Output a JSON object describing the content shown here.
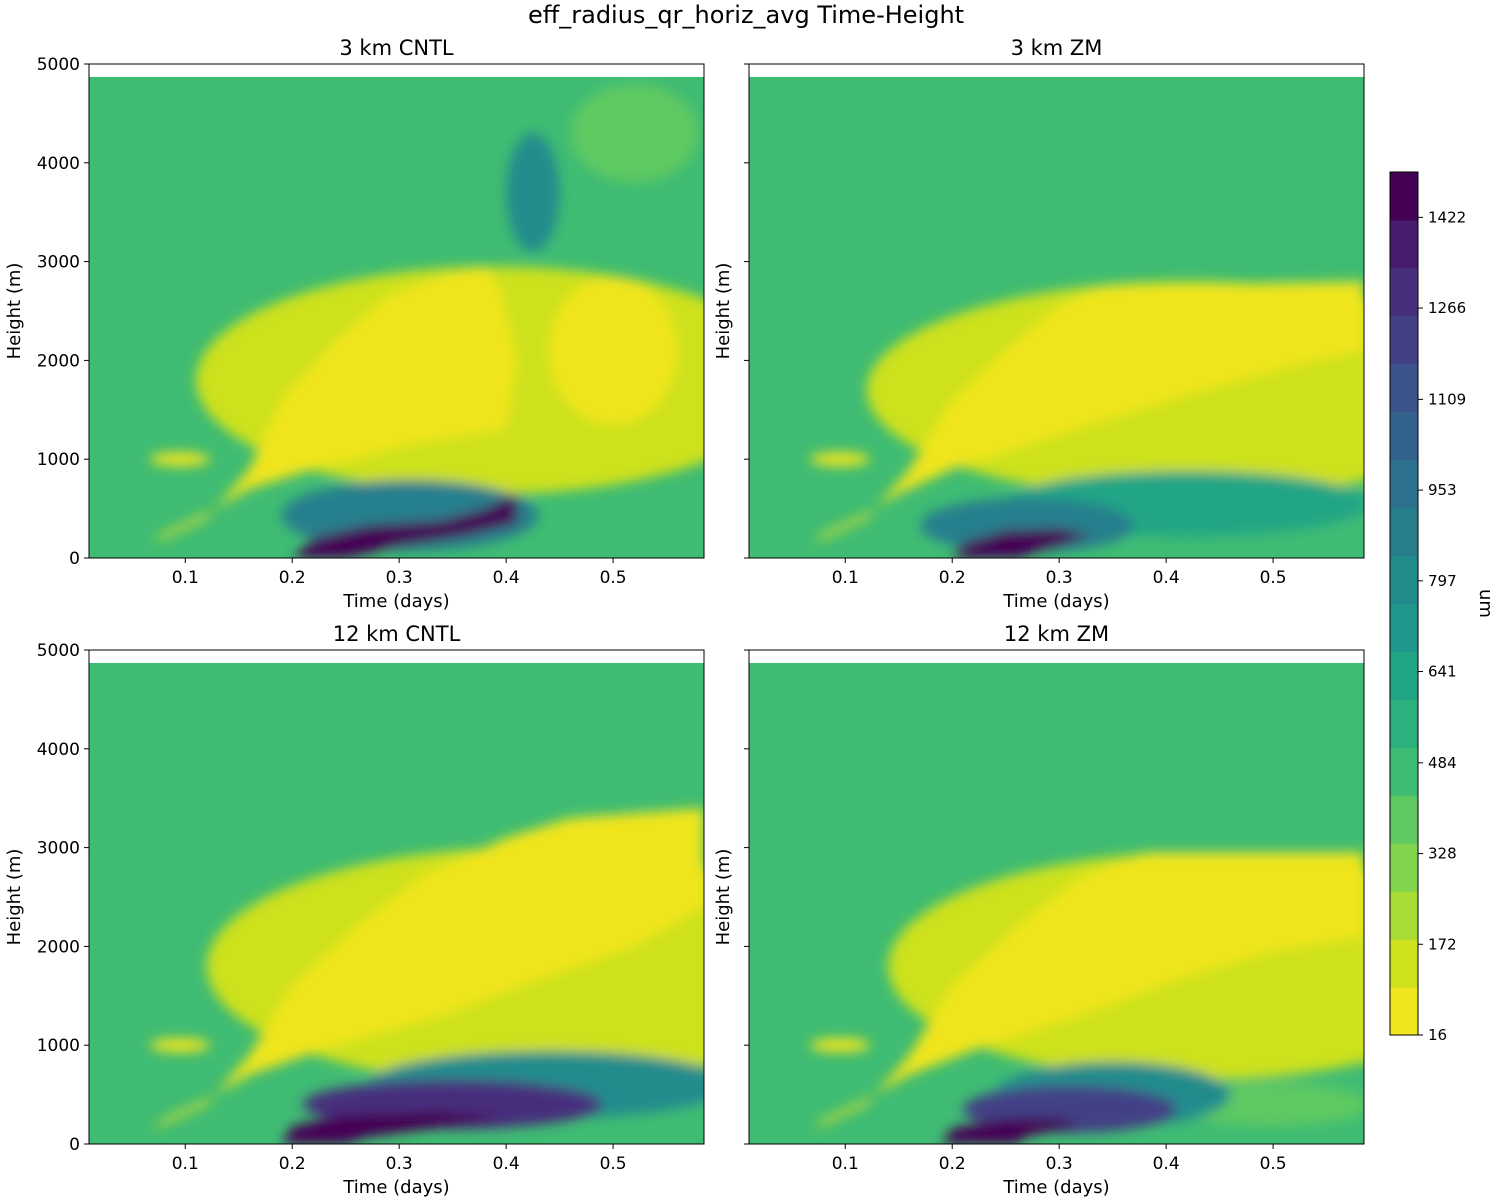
{
  "figure": {
    "title": "eff_radius_qr_horiz_avg Time-Height"
  },
  "colors": {
    "levels": [
      "#f0e51f",
      "#cde11d",
      "#a8db34",
      "#82d34d",
      "#5ec962",
      "#3fbc73",
      "#2cb17e",
      "#21a585",
      "#1f988b",
      "#228c8d",
      "#277f8e",
      "#2c728e",
      "#33638d",
      "#3b528b",
      "#424186",
      "#472f7d",
      "#481c6e",
      "#440154"
    ]
  },
  "chart_data": [
    {
      "type": "heatmap",
      "title": "3 km CNTL",
      "xlabel": "Time (days)",
      "ylabel": "Height (m)",
      "xlim": [
        0.01,
        0.585
      ],
      "ylim": [
        0,
        5000
      ],
      "data_top": 4870,
      "xticks": [
        "0.1",
        "0.2",
        "0.3",
        "0.4",
        "0.5"
      ],
      "yticks": [
        "0",
        "1000",
        "2000",
        "3000",
        "4000",
        "5000"
      ],
      "background_value": 490,
      "regions": [
        {
          "value": 120,
          "shape": "ellipse",
          "cx": 0.39,
          "cy": 1800,
          "rx": 0.28,
          "ry": 1150
        },
        {
          "value": 20,
          "shape": "polygon",
          "points": [
            [
              0.07,
              150
            ],
            [
              0.12,
              400
            ],
            [
              0.16,
              900
            ],
            [
              0.19,
              1600
            ],
            [
              0.24,
              2200
            ],
            [
              0.29,
              2650
            ],
            [
              0.34,
              2850
            ],
            [
              0.38,
              2950
            ],
            [
              0.395,
              2700
            ],
            [
              0.41,
              2000
            ],
            [
              0.4,
              1300
            ],
            [
              0.31,
              1150
            ],
            [
              0.22,
              900
            ],
            [
              0.16,
              700
            ],
            [
              0.12,
              450
            ],
            [
              0.08,
              250
            ]
          ]
        },
        {
          "value": 20,
          "shape": "ellipse",
          "cx": 0.5,
          "cy": 2100,
          "rx": 0.06,
          "ry": 750
        },
        {
          "value": 20,
          "shape": "ellipse",
          "cx": 0.095,
          "cy": 1000,
          "rx": 0.028,
          "ry": 70
        },
        {
          "value": 900,
          "shape": "ellipse",
          "cx": 0.31,
          "cy": 430,
          "rx": 0.12,
          "ry": 360
        },
        {
          "value": 1450,
          "shape": "polygon",
          "points": [
            [
              0.2,
              0
            ],
            [
              0.22,
              200
            ],
            [
              0.27,
              330
            ],
            [
              0.34,
              380
            ],
            [
              0.38,
              500
            ],
            [
              0.41,
              650
            ],
            [
              0.41,
              350
            ],
            [
              0.36,
              220
            ],
            [
              0.3,
              120
            ],
            [
              0.25,
              0
            ]
          ]
        },
        {
          "value": 800,
          "shape": "ellipse",
          "cx": 0.425,
          "cy": 3700,
          "rx": 0.025,
          "ry": 600
        },
        {
          "value": 380,
          "shape": "ellipse",
          "cx": 0.52,
          "cy": 4300,
          "rx": 0.06,
          "ry": 500
        }
      ]
    },
    {
      "type": "heatmap",
      "title": "3 km ZM",
      "xlabel": "Time (days)",
      "ylabel": "Height (m)",
      "xlim": [
        0.01,
        0.585
      ],
      "ylim": [
        0,
        5000
      ],
      "data_top": 4870,
      "xticks": [
        "0.1",
        "0.2",
        "0.3",
        "0.4",
        "0.5"
      ],
      "yticks": [
        "0",
        "1000",
        "2000",
        "3000",
        "4000",
        "5000"
      ],
      "background_value": 490,
      "regions": [
        {
          "value": 140,
          "shape": "ellipse",
          "cx": 0.42,
          "cy": 1700,
          "rx": 0.3,
          "ry": 1100
        },
        {
          "value": 20,
          "shape": "polygon",
          "points": [
            [
              0.07,
              150
            ],
            [
              0.12,
              400
            ],
            [
              0.16,
              900
            ],
            [
              0.2,
              1600
            ],
            [
              0.26,
              2200
            ],
            [
              0.3,
              2550
            ],
            [
              0.34,
              2750
            ],
            [
              0.585,
              2800
            ],
            [
              0.585,
              2100
            ],
            [
              0.52,
              1950
            ],
            [
              0.42,
              1650
            ],
            [
              0.3,
              1250
            ],
            [
              0.2,
              900
            ],
            [
              0.15,
              650
            ],
            [
              0.12,
              450
            ],
            [
              0.08,
              250
            ]
          ]
        },
        {
          "value": 20,
          "shape": "ellipse",
          "cx": 0.095,
          "cy": 1000,
          "rx": 0.028,
          "ry": 70
        },
        {
          "value": 650,
          "shape": "ellipse",
          "cx": 0.42,
          "cy": 550,
          "rx": 0.17,
          "ry": 330
        },
        {
          "value": 900,
          "shape": "ellipse",
          "cx": 0.27,
          "cy": 330,
          "rx": 0.1,
          "ry": 280
        },
        {
          "value": 1450,
          "shape": "polygon",
          "points": [
            [
              0.2,
              0
            ],
            [
              0.21,
              150
            ],
            [
              0.25,
              280
            ],
            [
              0.3,
              300
            ],
            [
              0.33,
              230
            ],
            [
              0.3,
              120
            ],
            [
              0.26,
              0
            ]
          ]
        }
      ]
    },
    {
      "type": "heatmap",
      "title": "12 km CNTL",
      "xlabel": "Time (days)",
      "ylabel": "Height (m)",
      "xlim": [
        0.01,
        0.585
      ],
      "ylim": [
        0,
        5000
      ],
      "data_top": 4870,
      "xticks": [
        "0.1",
        "0.2",
        "0.3",
        "0.4",
        "0.5"
      ],
      "yticks": [
        "0",
        "1000",
        "2000",
        "3000",
        "4000",
        "5000"
      ],
      "background_value": 490,
      "regions": [
        {
          "value": 140,
          "shape": "ellipse",
          "cx": 0.42,
          "cy": 1800,
          "rx": 0.3,
          "ry": 1200
        },
        {
          "value": 20,
          "shape": "polygon",
          "points": [
            [
              0.07,
              150
            ],
            [
              0.12,
              400
            ],
            [
              0.16,
              900
            ],
            [
              0.2,
              1600
            ],
            [
              0.26,
              2200
            ],
            [
              0.32,
              2700
            ],
            [
              0.4,
              3100
            ],
            [
              0.46,
              3300
            ],
            [
              0.585,
              3400
            ],
            [
              0.585,
              2400
            ],
            [
              0.52,
              2000
            ],
            [
              0.44,
              1700
            ],
            [
              0.34,
              1300
            ],
            [
              0.24,
              1000
            ],
            [
              0.16,
              700
            ],
            [
              0.12,
              450
            ],
            [
              0.08,
              250
            ]
          ]
        },
        {
          "value": 20,
          "shape": "ellipse",
          "cx": 0.095,
          "cy": 1000,
          "rx": 0.028,
          "ry": 70
        },
        {
          "value": 800,
          "shape": "ellipse",
          "cx": 0.44,
          "cy": 600,
          "rx": 0.17,
          "ry": 340
        },
        {
          "value": 1300,
          "shape": "ellipse",
          "cx": 0.35,
          "cy": 400,
          "rx": 0.14,
          "ry": 250
        },
        {
          "value": 1450,
          "shape": "polygon",
          "points": [
            [
              0.19,
              0
            ],
            [
              0.2,
              180
            ],
            [
              0.25,
              300
            ],
            [
              0.34,
              330
            ],
            [
              0.4,
              280
            ],
            [
              0.34,
              170
            ],
            [
              0.27,
              70
            ],
            [
              0.25,
              0
            ]
          ]
        }
      ]
    },
    {
      "type": "heatmap",
      "title": "12 km ZM",
      "xlabel": "Time (days)",
      "ylabel": "Height (m)",
      "xlim": [
        0.01,
        0.585
      ],
      "ylim": [
        0,
        5000
      ],
      "data_top": 4870,
      "xticks": [
        "0.1",
        "0.2",
        "0.3",
        "0.4",
        "0.5"
      ],
      "yticks": [
        "0",
        "1000",
        "2000",
        "3000",
        "4000",
        "5000"
      ],
      "background_value": 490,
      "regions": [
        {
          "value": 140,
          "shape": "ellipse",
          "cx": 0.43,
          "cy": 1800,
          "rx": 0.29,
          "ry": 1150
        },
        {
          "value": 20,
          "shape": "polygon",
          "points": [
            [
              0.07,
              150
            ],
            [
              0.12,
              400
            ],
            [
              0.16,
              900
            ],
            [
              0.2,
              1600
            ],
            [
              0.26,
              2200
            ],
            [
              0.32,
              2700
            ],
            [
              0.38,
              2950
            ],
            [
              0.585,
              2950
            ],
            [
              0.585,
              2100
            ],
            [
              0.5,
              1950
            ],
            [
              0.42,
              1700
            ],
            [
              0.32,
              1300
            ],
            [
              0.22,
              950
            ],
            [
              0.16,
              700
            ],
            [
              0.12,
              450
            ],
            [
              0.08,
              250
            ]
          ]
        },
        {
          "value": 20,
          "shape": "ellipse",
          "cx": 0.095,
          "cy": 1000,
          "rx": 0.028,
          "ry": 70
        },
        {
          "value": 380,
          "shape": "ellipse",
          "cx": 0.5,
          "cy": 400,
          "rx": 0.09,
          "ry": 220
        },
        {
          "value": 800,
          "shape": "ellipse",
          "cx": 0.35,
          "cy": 500,
          "rx": 0.11,
          "ry": 330
        },
        {
          "value": 1200,
          "shape": "ellipse",
          "cx": 0.31,
          "cy": 350,
          "rx": 0.1,
          "ry": 240
        },
        {
          "value": 1450,
          "shape": "polygon",
          "points": [
            [
              0.19,
              0
            ],
            [
              0.2,
              160
            ],
            [
              0.25,
              260
            ],
            [
              0.3,
              260
            ],
            [
              0.32,
              180
            ],
            [
              0.27,
              80
            ],
            [
              0.26,
              0
            ]
          ]
        }
      ]
    }
  ],
  "colorbar": {
    "label": "um",
    "range": [
      16,
      1500
    ],
    "ticks": [
      {
        "value": 16,
        "label": "16"
      },
      {
        "value": 172,
        "label": "172"
      },
      {
        "value": 328,
        "label": "328"
      },
      {
        "value": 484,
        "label": "484"
      },
      {
        "value": 641,
        "label": "641"
      },
      {
        "value": 797,
        "label": "797"
      },
      {
        "value": 953,
        "label": "953"
      },
      {
        "value": 1109,
        "label": "1109"
      },
      {
        "value": 1266,
        "label": "1266"
      },
      {
        "value": 1422,
        "label": "1422"
      }
    ]
  }
}
